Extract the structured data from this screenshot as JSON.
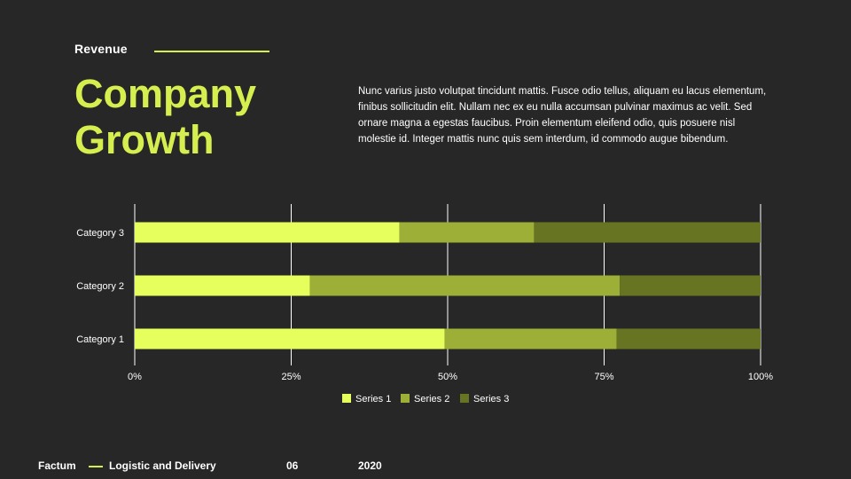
{
  "header": {
    "eyebrow": "Revenue",
    "title_line1": "Company",
    "title_line2": "Growth",
    "body": "Nunc varius justo volutpat tincidunt mattis. Fusce odio tellus, aliquam eu lacus elementum, finibus sollicitudin elit. Nullam nec ex eu nulla accumsan pulvinar maximus ac velit. Sed ornare magna a egestas faucibus. Proin elementum eleifend odio, quis posuere nisl molestie id. Integer mattis nunc quis sem interdum, id commodo augue bibendum."
  },
  "footer": {
    "brand": "Factum",
    "section": "Logistic and Delivery",
    "page": "06",
    "year": "2020"
  },
  "colors": {
    "accent": "#d6ee4e",
    "series1": "#e6ff5c",
    "series2": "#9daf36",
    "series3": "#677523"
  },
  "chart_data": {
    "type": "bar",
    "orientation": "horizontal",
    "stacking": "percent",
    "categories": [
      "Category 1",
      "Category 2",
      "Category 3"
    ],
    "series": [
      {
        "name": "Series 1",
        "values": [
          49.5,
          28,
          42.3
        ]
      },
      {
        "name": "Series 2",
        "values": [
          27.5,
          49.5,
          21.5
        ]
      },
      {
        "name": "Series 3",
        "values": [
          23,
          22.5,
          36.2
        ]
      }
    ],
    "xticks": [
      "0%",
      "25%",
      "50%",
      "75%",
      "100%"
    ],
    "xlim": [
      0,
      100
    ],
    "grid": "vertical",
    "legend": "bottom"
  }
}
